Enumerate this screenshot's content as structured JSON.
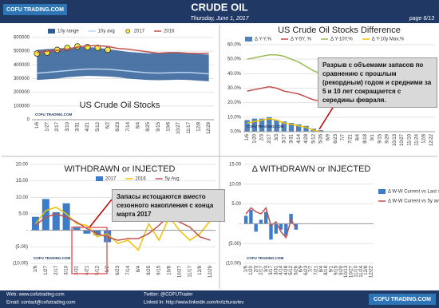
{
  "header": {
    "logo": "COFU TRADING.COM",
    "title": "CRUDE OIL",
    "date": "Thursday, June 1, 2017",
    "page": "page 6/13"
  },
  "watermark": "COFU TRADING.COM",
  "footer": {
    "web": "Web: www.cofutrading.com",
    "email": "Email: contact@cofutrading.com",
    "twitter": "Twitter: @COFUTrader",
    "linkedin": "Linked In: http://www.linkedin.com/in/izhuravlev",
    "logo": "COFU TRADING.COM"
  },
  "chart_data": [
    {
      "type": "line",
      "title": "US Crude Oil Stocks",
      "grid": true,
      "categories": [
        "1/6",
        "1/27",
        "2/17",
        "3/10",
        "3/31",
        "4/21",
        "5/12",
        "6/2",
        "6/23",
        "7/14",
        "8/4",
        "8/25",
        "9/15",
        "10/6",
        "10/27",
        "11/17",
        "12/8",
        "12/29"
      ],
      "ylim": [
        0,
        600000
      ],
      "yticks": [
        0,
        100000,
        200000,
        300000,
        400000,
        500000,
        600000
      ],
      "series": [
        {
          "name": "10y range",
          "type": "range",
          "color": "#2e5d96",
          "low": [
            290000,
            295000,
            300000,
            310000,
            315000,
            320000,
            318000,
            315000,
            310000,
            300000,
            295000,
            290000,
            288000,
            290000,
            292000,
            290000,
            285000,
            280000
          ],
          "high": [
            510000,
            515000,
            520000,
            525000,
            530000,
            530000,
            525000,
            515000,
            505000,
            495000,
            490000,
            485000,
            485000,
            490000,
            490000,
            485000,
            480000,
            475000
          ]
        },
        {
          "name": "10y avg",
          "type": "line",
          "color": "#b9d3ee",
          "values": [
            340000,
            345000,
            352000,
            358000,
            365000,
            370000,
            370000,
            368000,
            362000,
            355000,
            348000,
            342000,
            340000,
            342000,
            345000,
            345000,
            340000,
            335000
          ]
        },
        {
          "name": "2017",
          "type": "dots",
          "color": "#f5e642",
          "values": [
            483000,
            490000,
            510000,
            525000,
            535000,
            530000,
            525000,
            510000,
            null,
            null,
            null,
            null,
            null,
            null,
            null,
            null,
            null,
            null
          ]
        },
        {
          "name": "2016",
          "type": "line",
          "color": "#c0504d",
          "values": [
            490000,
            500000,
            505000,
            515000,
            530000,
            540000,
            540000,
            535000,
            520000,
            515000,
            505000,
            495000,
            485000,
            490000,
            490000,
            485000,
            483000,
            485000
          ]
        }
      ]
    },
    {
      "type": "combo",
      "title": "US Crude Oil Stocks Difference",
      "grid": true,
      "categories": [
        "1/6",
        "1/20",
        "2/3",
        "2/17",
        "3/3",
        "3/17",
        "3/31",
        "4/14",
        "4/28",
        "5/12",
        "5/26",
        "6/9",
        "6/23",
        "7/7",
        "7/21",
        "8/4",
        "8/18",
        "9/1",
        "9/15",
        "9/29",
        "10/13",
        "10/27",
        "11/10",
        "11/24",
        "12/8",
        "12/22"
      ],
      "ylim": [
        0,
        60
      ],
      "yticks": [
        {
          "value": 0,
          "label": "0.0%"
        },
        {
          "value": 10,
          "label": "10.0%"
        },
        {
          "value": 20,
          "label": "20.0%"
        },
        {
          "value": 30,
          "label": "30.0%"
        },
        {
          "value": 40,
          "label": "40.0%"
        },
        {
          "value": 50,
          "label": "50.0%"
        },
        {
          "value": 60,
          "label": "60.0%"
        }
      ],
      "annotation": "Разрыв с объемами запасов по сравнению с прошлым (рекордным) годом и средними за 5 и 10 лет сокращается с середины февраля.",
      "series": [
        {
          "name": "Δ Y-Y,%",
          "type": "bar",
          "color": "#4f81bd",
          "values": [
            8,
            9,
            9,
            10,
            8,
            7,
            6,
            5,
            4,
            2,
            1,
            null,
            null,
            null,
            null,
            null,
            null,
            null,
            null,
            null,
            null,
            null,
            null,
            null,
            null,
            null
          ]
        },
        {
          "name": "Δ Y-5Y, %",
          "type": "line",
          "color": "#c0504d",
          "values": [
            28,
            29,
            30,
            31,
            30,
            28,
            27,
            26,
            24,
            22,
            21,
            null,
            null,
            null,
            null,
            null,
            null,
            null,
            null,
            null,
            null,
            null,
            null,
            null,
            null,
            null
          ]
        },
        {
          "name": "Δ Y-10Y,%",
          "type": "line",
          "color": "#9bbb59",
          "values": [
            50,
            51,
            52,
            53,
            53,
            52,
            50,
            48,
            45,
            42,
            40,
            null,
            null,
            null,
            null,
            null,
            null,
            null,
            null,
            null,
            null,
            null,
            null,
            null,
            null,
            null
          ]
        },
        {
          "name": "Δ Y-10y Max,%",
          "type": "line",
          "color": "#f2c200",
          "values": [
            6,
            7,
            8,
            9,
            8,
            6,
            5,
            4,
            3,
            1,
            0,
            null,
            null,
            null,
            null,
            null,
            null,
            null,
            null,
            null,
            null,
            null,
            null,
            null,
            null,
            null
          ]
        }
      ]
    },
    {
      "type": "combo",
      "title": "WITHDRAWN or INJECTED",
      "grid": true,
      "categories": [
        "1/6",
        "1/27",
        "2/17",
        "3/10",
        "3/31",
        "4/21",
        "5/12",
        "6/2",
        "6/23",
        "7/14",
        "8/4",
        "8/25",
        "9/15",
        "10/6",
        "10/27",
        "11/17",
        "12/8",
        "12/29"
      ],
      "ylim": [
        -10,
        20
      ],
      "yticks": [
        {
          "value": -10,
          "label": "(10.00)"
        },
        {
          "value": -5,
          "label": "(5.00)"
        },
        {
          "value": 0,
          "label": "-"
        },
        {
          "value": 5,
          "label": "5.00"
        },
        {
          "value": 10,
          "label": "10.00"
        },
        {
          "value": 15,
          "label": "15.00"
        },
        {
          "value": 20,
          "label": "20.00"
        }
      ],
      "annotation": "Запасы истощаются вместо сезонного накопления с конца марта 2017",
      "series": [
        {
          "name": "2017",
          "type": "bar",
          "color": "#3d7cc9",
          "values": [
            4.1,
            9.5,
            5.5,
            8.2,
            1.2,
            -1.0,
            -1.5,
            -3.6,
            null,
            null,
            null,
            null,
            null,
            null,
            null,
            null,
            null,
            null
          ]
        },
        {
          "name": "2016",
          "type": "line",
          "color": "#f2c200",
          "values": [
            2.0,
            6.0,
            7.0,
            5.0,
            2.0,
            1.5,
            -2.0,
            -1.0,
            -4.0,
            -3.0,
            -6.0,
            2.0,
            -3.0,
            4.0,
            0.0,
            -3.0,
            -1.0,
            3.0
          ]
        },
        {
          "name": "5y Avg",
          "type": "line",
          "color": "#c0504d",
          "values": [
            1.5,
            4.0,
            5.0,
            4.0,
            2.5,
            0.5,
            -1.0,
            -2.0,
            -3.0,
            -2.5,
            -2.5,
            -1.0,
            1.5,
            4.5,
            2.5,
            1.0,
            -2.0,
            -3.0
          ]
        }
      ]
    },
    {
      "type": "combo",
      "title": "Δ WITHDRAWN or INJECTED",
      "grid": true,
      "categories": [
        "1/6",
        "1/20",
        "2/3",
        "2/17",
        "3/3",
        "3/17",
        "3/31",
        "4/14",
        "4/28",
        "5/12",
        "5/26",
        "6/9",
        "6/23",
        "7/7",
        "7/21",
        "8/4",
        "8/18",
        "9/1",
        "9/15",
        "9/29",
        "10/13",
        "10/27",
        "11/10",
        "11/24",
        "12/8",
        "12/22"
      ],
      "ylim": [
        -10,
        15
      ],
      "yticks": [
        {
          "value": -10,
          "label": "(10.00)"
        },
        {
          "value": -5,
          "label": "(5.00)"
        },
        {
          "value": 0,
          "label": "-"
        },
        {
          "value": 5,
          "label": "5.00"
        },
        {
          "value": 10,
          "label": "10.00"
        },
        {
          "value": 15,
          "label": "15.00"
        }
      ],
      "series": [
        {
          "name": "Δ W-W Current vs Last season",
          "type": "bar",
          "color": "#3d7cc9",
          "values": [
            2.0,
            3.5,
            -2.0,
            1.0,
            3.0,
            -4.0,
            -2.5,
            -1.5,
            -3.0,
            2.5,
            -1.5,
            null,
            null,
            null,
            null,
            null,
            null,
            null,
            null,
            null,
            null,
            null,
            null,
            null,
            null,
            null
          ]
        },
        {
          "name": "Δ W-W Current vs 5y avg.",
          "type": "line",
          "color": "#c0504d",
          "values": [
            2.5,
            4.0,
            3.0,
            2.5,
            4.0,
            -0.5,
            0.5,
            -2.0,
            -3.5,
            1.0,
            -1.0,
            null,
            null,
            null,
            null,
            null,
            null,
            null,
            null,
            null,
            null,
            null,
            null,
            null,
            null,
            null
          ]
        }
      ]
    }
  ]
}
